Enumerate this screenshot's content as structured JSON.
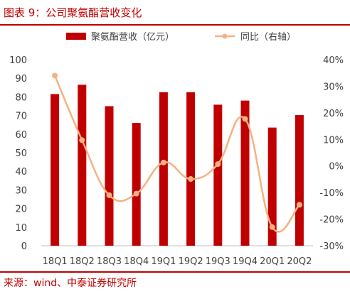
{
  "title": "图表 9：公司聚氨酯营收变化",
  "source": "来源：wind、中泰证券研究所",
  "colors": {
    "bar": "#c00000",
    "line": "#f4b183",
    "text": "#404040",
    "accent": "#c00000"
  },
  "chart_data": {
    "type": "bar+line",
    "categories": [
      "18Q1",
      "18Q2",
      "18Q3",
      "18Q4",
      "19Q1",
      "19Q2",
      "19Q3",
      "19Q4",
      "20Q1",
      "20Q2"
    ],
    "series": [
      {
        "name": "聚氨酯营收（亿元）",
        "type": "bar",
        "axis": "left",
        "values": [
          81.5,
          86.5,
          75,
          66,
          82.5,
          82.5,
          75.8,
          78,
          63.5,
          70.2
        ]
      },
      {
        "name": "同比（右轴）",
        "type": "line",
        "axis": "right",
        "unit": "%",
        "values": [
          34,
          9.7,
          -11,
          -10.4,
          1.3,
          -4.9,
          0.7,
          17.7,
          -23,
          -14.6
        ]
      }
    ],
    "left_axis": {
      "min": 0,
      "max": 100,
      "step": 10,
      "ticks": [
        "0",
        "10",
        "20",
        "30",
        "40",
        "50",
        "60",
        "70",
        "80",
        "90",
        "100"
      ]
    },
    "right_axis": {
      "min": -30,
      "max": 40,
      "step": 10,
      "ticks": [
        "-30%",
        "-20%",
        "-10%",
        "0%",
        "10%",
        "20%",
        "30%",
        "40%"
      ]
    },
    "legend_position": "top",
    "grid": false
  }
}
